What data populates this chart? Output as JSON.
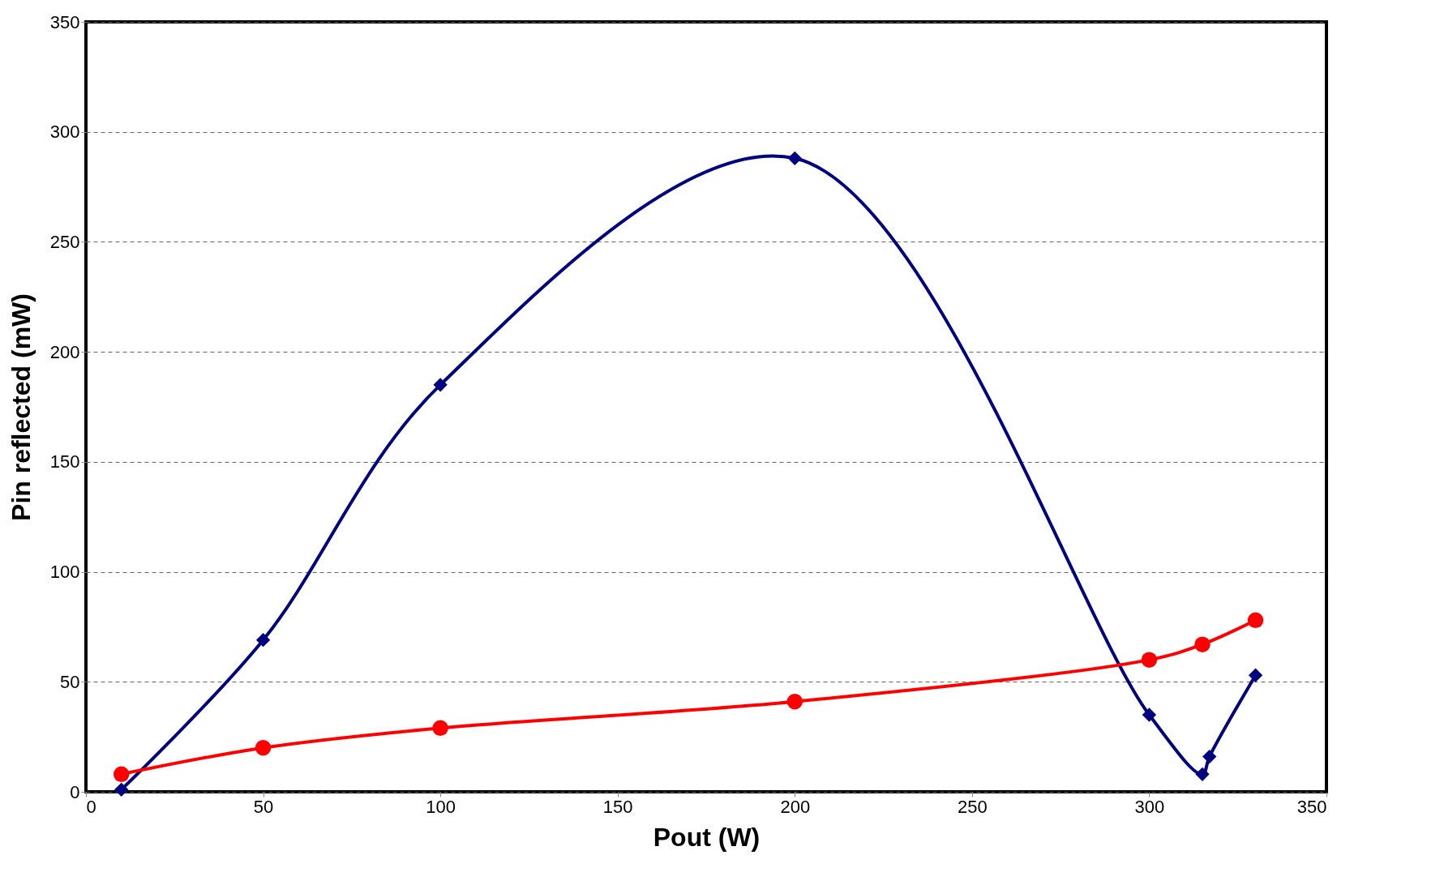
{
  "chart_data": {
    "type": "line",
    "xlabel": "Pout (W)",
    "ylabel": "Pin reflected (mW)",
    "xlim": [
      0,
      350
    ],
    "xticks": [
      0,
      50,
      100,
      150,
      200,
      250,
      300,
      350
    ],
    "ylim": [
      0,
      350
    ],
    "yticks": [
      0,
      50,
      100,
      150,
      200,
      250,
      300,
      350
    ],
    "grid": "y",
    "line_style": "solid",
    "series": [
      {
        "color": "#000080",
        "marker": "diamond",
        "x": [
          10,
          50,
          100,
          200,
          300,
          315,
          317,
          330
        ],
        "values": [
          1,
          69,
          185,
          288,
          35,
          8,
          16,
          53
        ]
      },
      {
        "color": "#ff0000",
        "marker": "circle",
        "x": [
          10,
          50,
          100,
          200,
          300,
          315,
          330
        ],
        "values": [
          8,
          20,
          29,
          41,
          60,
          67,
          78
        ]
      }
    ]
  }
}
